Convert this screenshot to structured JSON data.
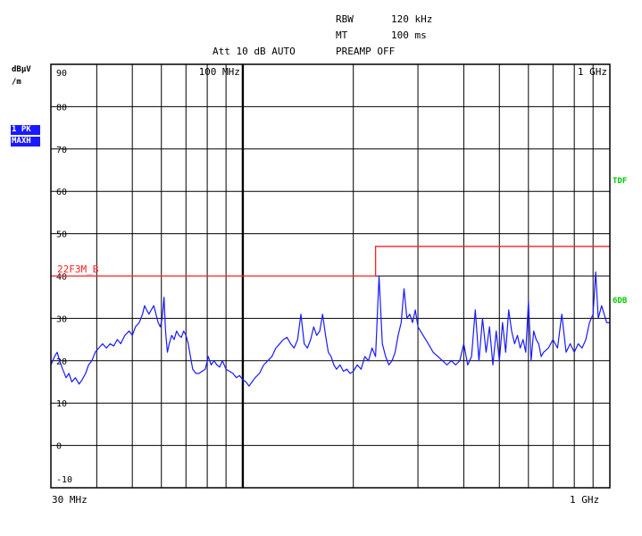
{
  "header": {
    "rbw_label": "RBW",
    "rbw_value": "120 kHz",
    "mt_label": "MT",
    "mt_value": "100 ms",
    "att_line": "Att 10 dB AUTO",
    "preamp": "PREAMP OFF"
  },
  "unit_label_line1": "dBµV",
  "unit_label_line2": "/m",
  "trace_badges": [
    "1 PK",
    "MAXH"
  ],
  "side_labels": {
    "upper": "TDF",
    "lower": "6DB"
  },
  "colors": {
    "trace": "#1a1aff",
    "limit": "#ff2020",
    "grid": "#000000",
    "side": "#00cc00"
  },
  "chart_data": {
    "type": "line",
    "x_scale": "log",
    "x_unit": "MHz",
    "xlim": [
      30,
      1000
    ],
    "ylim": [
      -10,
      90
    ],
    "y_unit": "dBµV/m",
    "y_ticks": [
      90,
      80,
      70,
      60,
      50,
      40,
      30,
      20,
      10,
      0,
      -10
    ],
    "x_tick_labels": [
      {
        "text": "30 MHz",
        "x": 30
      },
      {
        "text": "1 GHz",
        "x": 1000
      }
    ],
    "grid_labels": [
      {
        "text": "100 MHz",
        "x": 100
      },
      {
        "text": "1 GHz",
        "x": 1000
      }
    ],
    "grid_x": [
      40,
      50,
      60,
      70,
      80,
      90,
      100,
      200,
      300,
      400,
      500,
      600,
      700,
      800,
      900
    ],
    "grid_x_bold": [
      100
    ],
    "grid_y": [
      80,
      70,
      60,
      50,
      40,
      30,
      20,
      10,
      0
    ],
    "limit_line": {
      "label": "22F3M_B",
      "segments": [
        {
          "x_start": 30,
          "x_end": 230,
          "level": 40
        },
        {
          "x_start": 230,
          "x_end": 1000,
          "level": 47
        }
      ]
    },
    "series": [
      {
        "points": [
          [
            30,
            19
          ],
          [
            30.7,
            21
          ],
          [
            31.2,
            22
          ],
          [
            31.7,
            20
          ],
          [
            32.3,
            18
          ],
          [
            33,
            16
          ],
          [
            33.6,
            17
          ],
          [
            34.2,
            15
          ],
          [
            35,
            16
          ],
          [
            35.8,
            14.5
          ],
          [
            36.5,
            15.5
          ],
          [
            37.3,
            17
          ],
          [
            38,
            19
          ],
          [
            38.8,
            20
          ],
          [
            39.6,
            22
          ],
          [
            40.5,
            23
          ],
          [
            41.5,
            24
          ],
          [
            42.5,
            23
          ],
          [
            43.5,
            24
          ],
          [
            44.5,
            23.5
          ],
          [
            45.5,
            25
          ],
          [
            46.5,
            24
          ],
          [
            47.7,
            26
          ],
          [
            49,
            27
          ],
          [
            50,
            26
          ],
          [
            51,
            28
          ],
          [
            52.2,
            29
          ],
          [
            53.3,
            31
          ],
          [
            54,
            33
          ],
          [
            54.7,
            32
          ],
          [
            55.5,
            31
          ],
          [
            56.3,
            32
          ],
          [
            57.2,
            33
          ],
          [
            58,
            31
          ],
          [
            58.8,
            29
          ],
          [
            59.6,
            28
          ],
          [
            60.3,
            30
          ],
          [
            61,
            35
          ],
          [
            61.6,
            27
          ],
          [
            62.3,
            22
          ],
          [
            63,
            24
          ],
          [
            64,
            26
          ],
          [
            65,
            25
          ],
          [
            66,
            27
          ],
          [
            67,
            26
          ],
          [
            68,
            25.5
          ],
          [
            69,
            27
          ],
          [
            70,
            26
          ],
          [
            71,
            24
          ],
          [
            72,
            21
          ],
          [
            73,
            18
          ],
          [
            74.5,
            17
          ],
          [
            76,
            17
          ],
          [
            77.5,
            17.5
          ],
          [
            79,
            18
          ],
          [
            80.5,
            21
          ],
          [
            82,
            19
          ],
          [
            83.5,
            20
          ],
          [
            85,
            19
          ],
          [
            86.5,
            18.5
          ],
          [
            88,
            20
          ],
          [
            90,
            18
          ],
          [
            92,
            17.5
          ],
          [
            94,
            17
          ],
          [
            96,
            16
          ],
          [
            98,
            16.5
          ],
          [
            100,
            15.5
          ],
          [
            102,
            15
          ],
          [
            104,
            14
          ],
          [
            106,
            15
          ],
          [
            108,
            16
          ],
          [
            111,
            17
          ],
          [
            114,
            19
          ],
          [
            117,
            20
          ],
          [
            120,
            21
          ],
          [
            123,
            23
          ],
          [
            126,
            24
          ],
          [
            129,
            25
          ],
          [
            132,
            25.5
          ],
          [
            135,
            24
          ],
          [
            138,
            23
          ],
          [
            141,
            25
          ],
          [
            144,
            31
          ],
          [
            147,
            24
          ],
          [
            150,
            23
          ],
          [
            153,
            25
          ],
          [
            156,
            28
          ],
          [
            159,
            26
          ],
          [
            162,
            27
          ],
          [
            165,
            31
          ],
          [
            168,
            26
          ],
          [
            171,
            22
          ],
          [
            174,
            21
          ],
          [
            177,
            19
          ],
          [
            180,
            18
          ],
          [
            184,
            19
          ],
          [
            188,
            17.5
          ],
          [
            192,
            18
          ],
          [
            196,
            17
          ],
          [
            200,
            17.5
          ],
          [
            205,
            19
          ],
          [
            210,
            18
          ],
          [
            215,
            21
          ],
          [
            220,
            20
          ],
          [
            225,
            23
          ],
          [
            230,
            21
          ],
          [
            235,
            40
          ],
          [
            240,
            24
          ],
          [
            245,
            21
          ],
          [
            250,
            19
          ],
          [
            255,
            20
          ],
          [
            260,
            22
          ],
          [
            265,
            26
          ],
          [
            270,
            29
          ],
          [
            275,
            37
          ],
          [
            280,
            30
          ],
          [
            285,
            31
          ],
          [
            290,
            29
          ],
          [
            295,
            32
          ],
          [
            300,
            28
          ],
          [
            310,
            26
          ],
          [
            320,
            24
          ],
          [
            330,
            22
          ],
          [
            340,
            21
          ],
          [
            350,
            20
          ],
          [
            360,
            19
          ],
          [
            370,
            20
          ],
          [
            380,
            19
          ],
          [
            390,
            20
          ],
          [
            400,
            24
          ],
          [
            410,
            19
          ],
          [
            420,
            21
          ],
          [
            430,
            32
          ],
          [
            440,
            20
          ],
          [
            450,
            30
          ],
          [
            460,
            22
          ],
          [
            470,
            28
          ],
          [
            480,
            19
          ],
          [
            490,
            27
          ],
          [
            500,
            20
          ],
          [
            510,
            29
          ],
          [
            520,
            22
          ],
          [
            530,
            32
          ],
          [
            540,
            27
          ],
          [
            550,
            24
          ],
          [
            560,
            26
          ],
          [
            570,
            23
          ],
          [
            580,
            25
          ],
          [
            590,
            22
          ],
          [
            600,
            34
          ],
          [
            610,
            20
          ],
          [
            620,
            27
          ],
          [
            630,
            25
          ],
          [
            640,
            24
          ],
          [
            650,
            21
          ],
          [
            660,
            22
          ],
          [
            680,
            23
          ],
          [
            700,
            25
          ],
          [
            720,
            23
          ],
          [
            740,
            31
          ],
          [
            760,
            22
          ],
          [
            780,
            24
          ],
          [
            800,
            22
          ],
          [
            820,
            24
          ],
          [
            840,
            23
          ],
          [
            860,
            25
          ],
          [
            880,
            29
          ],
          [
            900,
            31
          ],
          [
            915,
            41
          ],
          [
            930,
            30
          ],
          [
            950,
            33
          ],
          [
            965,
            31
          ],
          [
            980,
            29
          ],
          [
            1000,
            29
          ]
        ]
      }
    ]
  }
}
